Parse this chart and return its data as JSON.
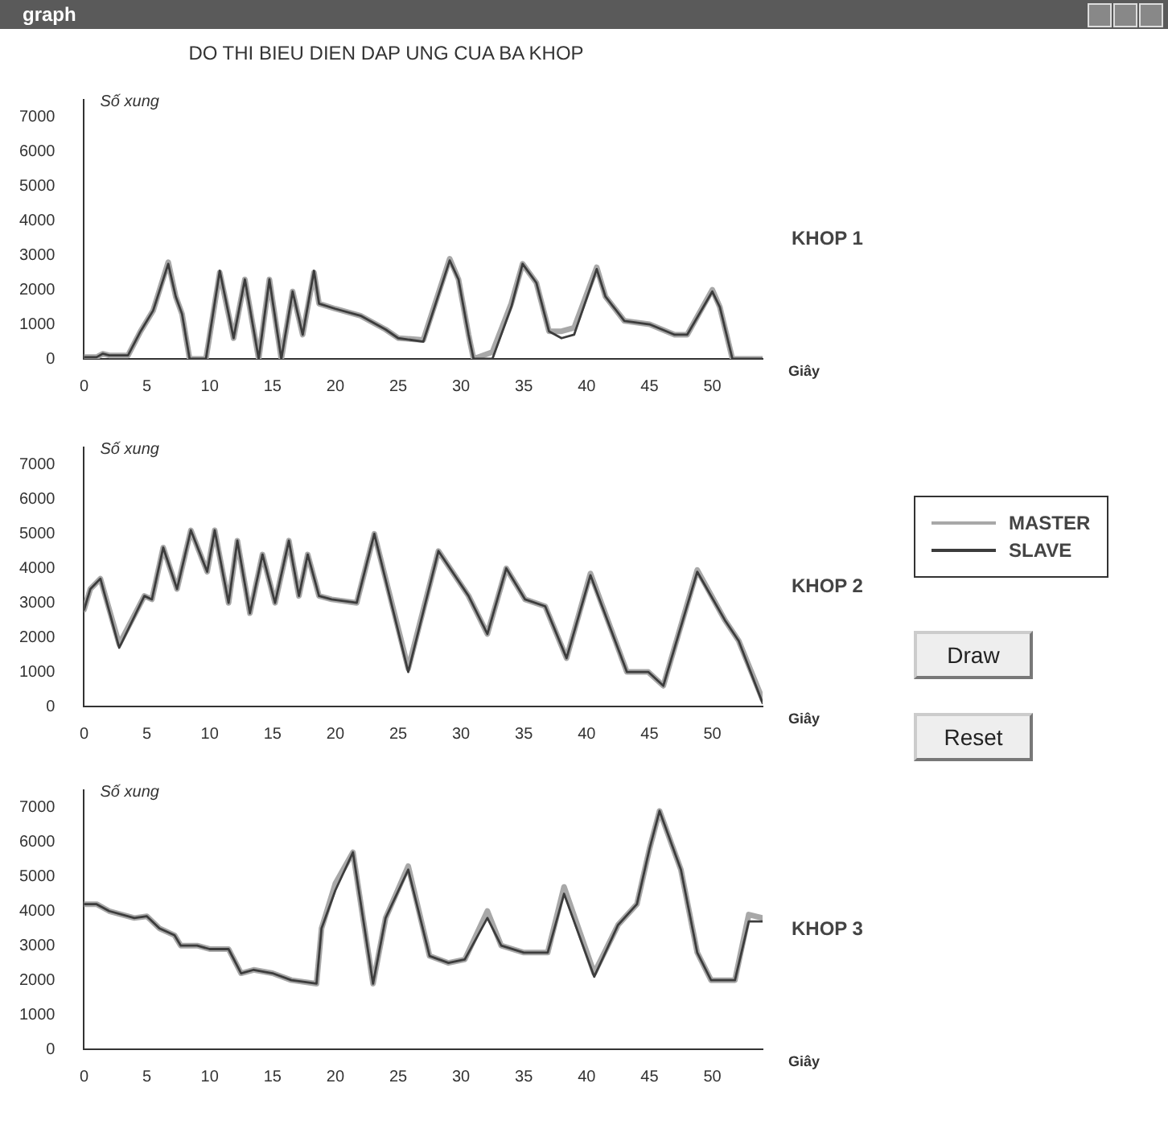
{
  "chart_data": [
    {
      "type": "line",
      "title": "DO THI BIEU DIEN DAP UNG CUA BA KHOP",
      "ylabel": "Số xung",
      "xlabel": "Giây",
      "annotations": [
        "KHOP 1"
      ],
      "xlim": [
        0,
        54
      ],
      "xticks": [
        0,
        5,
        10,
        15,
        20,
        25,
        30,
        35,
        40,
        45,
        50
      ],
      "ylim": [
        0,
        7500
      ],
      "yticks": [
        0,
        1000,
        2000,
        3000,
        4000,
        5000,
        6000,
        7000
      ],
      "grid": false,
      "legend": false,
      "marker": "none",
      "line_style": "solid",
      "x": [
        0,
        1,
        1.5,
        2,
        3.5,
        4.5,
        5.5,
        6.7,
        7.3,
        7.8,
        8.4,
        9.7,
        10.8,
        11.9,
        12.8,
        13.9,
        14.75,
        15.7,
        16.6,
        17.4,
        18.3,
        18.7,
        20,
        22,
        24,
        25,
        27,
        29.1,
        29.8,
        30.6,
        31,
        32.5,
        34,
        34.9,
        36,
        37,
        38,
        39,
        40.8,
        41.5,
        43,
        45,
        47,
        48,
        50,
        50.6,
        51.6,
        54
      ],
      "series": [
        {
          "color": "#a8a8a8",
          "values": [
            50,
            50,
            150,
            100,
            100,
            800,
            1400,
            2800,
            1800,
            1300,
            0,
            0,
            2500,
            600,
            2300,
            0,
            2300,
            0,
            1950,
            700,
            2500,
            1600,
            1450,
            1250,
            850,
            600,
            550,
            2900,
            2300,
            700,
            0,
            200,
            1600,
            2750,
            2200,
            800,
            800,
            900,
            2650,
            1800,
            1100,
            1000,
            700,
            700,
            2000,
            1500,
            0,
            0
          ]
        },
        {
          "color": "#3c3c3c",
          "values": [
            50,
            50,
            150,
            100,
            100,
            800,
            1400,
            2750,
            1800,
            1300,
            0,
            0,
            2550,
            600,
            2300,
            0,
            2300,
            0,
            1950,
            700,
            2550,
            1600,
            1450,
            1250,
            850,
            600,
            500,
            2850,
            2300,
            700,
            0,
            0,
            1500,
            2750,
            2200,
            800,
            600,
            700,
            2600,
            1800,
            1100,
            1000,
            700,
            700,
            1950,
            1500,
            0,
            0
          ]
        }
      ]
    },
    {
      "type": "line",
      "ylabel": "Số xung",
      "xlabel": "Giây",
      "annotations": [
        "KHOP 2"
      ],
      "xlim": [
        0,
        54
      ],
      "xticks": [
        0,
        5,
        10,
        15,
        20,
        25,
        30,
        35,
        40,
        45,
        50
      ],
      "ylim": [
        0,
        7500
      ],
      "yticks": [
        0,
        1000,
        2000,
        3000,
        4000,
        5000,
        6000,
        7000
      ],
      "grid": false,
      "legend": "right",
      "marker": "none",
      "line_style": "solid",
      "x": [
        0,
        0.5,
        1.3,
        2.8,
        4.8,
        5.4,
        6.3,
        7.4,
        8.5,
        9.8,
        10.4,
        11.5,
        12.2,
        13.2,
        14.2,
        15.2,
        16.3,
        17.1,
        17.8,
        18.7,
        19.7,
        21.7,
        23.1,
        25.8,
        28.2,
        30.6,
        32.1,
        33.6,
        35.1,
        36.7,
        38.4,
        40.3,
        43.2,
        44.9,
        46.1,
        48.8,
        51,
        52.1,
        54
      ],
      "series": [
        {
          "name": "MASTER",
          "color": "#a8a8a8",
          "values": [
            2800,
            3400,
            3700,
            1800,
            3200,
            3100,
            4600,
            3400,
            5100,
            3900,
            5100,
            3000,
            4800,
            2700,
            4400,
            3000,
            4800,
            3200,
            4400,
            3200,
            3100,
            3000,
            5000,
            1100,
            4500,
            3200,
            2100,
            4000,
            3100,
            2900,
            1400,
            3850,
            1000,
            1000,
            600,
            3950,
            2500,
            1900,
            200
          ]
        },
        {
          "name": "SLAVE",
          "color": "#3c3c3c",
          "values": [
            2800,
            3400,
            3700,
            1700,
            3200,
            3100,
            4600,
            3400,
            5100,
            3900,
            5100,
            3000,
            4800,
            2700,
            4400,
            3000,
            4800,
            3200,
            4400,
            3200,
            3100,
            3000,
            5000,
            1000,
            4500,
            3200,
            2100,
            4000,
            3100,
            2900,
            1400,
            3800,
            1000,
            1000,
            600,
            3900,
            2500,
            1900,
            100
          ]
        }
      ]
    },
    {
      "type": "line",
      "ylabel": "Số xung",
      "xlabel": "Giây",
      "annotations": [
        "KHOP 3"
      ],
      "xlim": [
        0,
        54
      ],
      "xticks": [
        0,
        5,
        10,
        15,
        20,
        25,
        30,
        35,
        40,
        45,
        50
      ],
      "ylim": [
        0,
        7500
      ],
      "yticks": [
        0,
        1000,
        2000,
        3000,
        4000,
        5000,
        6000,
        7000
      ],
      "grid": false,
      "legend": false,
      "marker": "none",
      "line_style": "solid",
      "x": [
        0,
        1,
        2,
        4,
        5,
        6,
        7.2,
        7.7,
        9,
        10,
        11.5,
        12.5,
        13.5,
        15,
        16.5,
        18.5,
        18.9,
        20,
        21.4,
        23,
        24,
        25.8,
        27.5,
        29,
        30.3,
        32.1,
        33.2,
        35,
        36.9,
        38.2,
        40.6,
        42.5,
        44,
        45,
        45.8,
        47.5,
        48.8,
        49.9,
        51.8,
        52.9,
        54
      ],
      "series": [
        {
          "color": "#a8a8a8",
          "values": [
            4200,
            4200,
            4000,
            3800,
            3850,
            3500,
            3300,
            3000,
            3000,
            2900,
            2900,
            2200,
            2300,
            2200,
            2000,
            1900,
            3500,
            4800,
            5700,
            1900,
            3800,
            5300,
            2700,
            2500,
            2600,
            4000,
            3000,
            2800,
            2800,
            4700,
            2200,
            3600,
            4200,
            5800,
            6900,
            5200,
            2800,
            2000,
            2000,
            3900,
            3800
          ]
        },
        {
          "color": "#3c3c3c",
          "values": [
            4200,
            4200,
            4000,
            3800,
            3850,
            3500,
            3300,
            3000,
            3000,
            2900,
            2900,
            2200,
            2300,
            2200,
            2000,
            1900,
            3500,
            4600,
            5700,
            1900,
            3800,
            5200,
            2700,
            2500,
            2600,
            3800,
            3000,
            2800,
            2800,
            4500,
            2100,
            3600,
            4200,
            5800,
            6900,
            5200,
            2800,
            2000,
            2000,
            3700,
            3700
          ]
        }
      ]
    },
    {
      "type": "other",
      "title": "graph",
      "annotations": [
        "Draw",
        "Reset"
      ]
    }
  ]
}
